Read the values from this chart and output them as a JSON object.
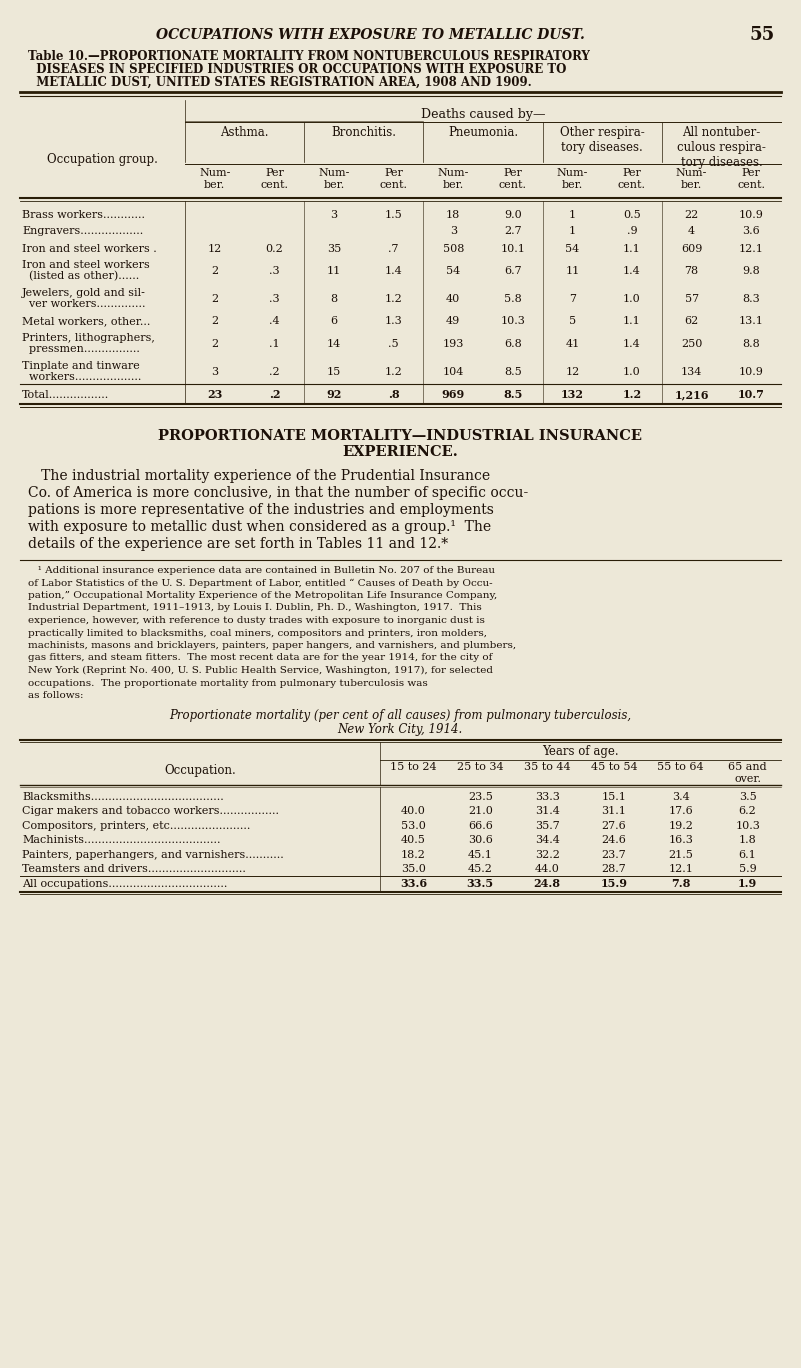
{
  "bg_color": "#ede8d8",
  "page_header": "OCCUPATIONS WITH EXPOSURE TO METALLIC DUST.",
  "page_number": "55",
  "table_title_line1": "Table 10.—PROPORTIONATE MORTALITY FROM NONTUBERCULOUS RESPIRATORY",
  "table_title_line2": "  DISEASES IN SPECIFIED INDUSTRIES OR OCCUPATIONS WITH EXPOSURE TO",
  "table_title_line3": "  METALLIC DUST, UNITED STATES REGISTRATION AREA, 1908 AND 1909.",
  "deaths_caused_by": "Deaths caused by—",
  "col_headers": [
    "Asthma.",
    "Bronchitis.",
    "Pneumonia.",
    "Other respira-\ntory diseases.",
    "All nontuber-\nculous respira-\ntory diseases."
  ],
  "sub_headers": [
    "Num-\nber.",
    "Per\ncent.",
    "Num-\nber.",
    "Per\ncent.",
    "Num-\nber.",
    "Per\ncent.",
    "Num-\nber.",
    "Per\ncent.",
    "Num-\nber.",
    "Per\ncent."
  ],
  "occupation_header": "Occupation group.",
  "rows": [
    {
      "name1": "Brass workers............",
      "name2": "",
      "data": [
        "",
        "",
        "3",
        "1.5",
        "18",
        "9.0",
        "1",
        "0.5",
        "22",
        "10.9"
      ]
    },
    {
      "name1": "Engravers..................",
      "name2": "",
      "data": [
        "",
        "",
        "",
        "",
        "3",
        "2.7",
        "1",
        ".9",
        "4",
        "3.6"
      ]
    },
    {
      "name1": "Iron and steel workers .",
      "name2": "",
      "data": [
        "12",
        "0.2",
        "35",
        ".7",
        "508",
        "10.1",
        "54",
        "1.1",
        "609",
        "12.1"
      ]
    },
    {
      "name1": "Iron and steel workers",
      "name2": "  (listed as other)......",
      "data": [
        "2",
        ".3",
        "11",
        "1.4",
        "54",
        "6.7",
        "11",
        "1.4",
        "78",
        "9.8"
      ]
    },
    {
      "name1": "Jewelers, gold and sil-",
      "name2": "  ver workers..............",
      "data": [
        "2",
        ".3",
        "8",
        "1.2",
        "40",
        "5.8",
        "7",
        "1.0",
        "57",
        "8.3"
      ]
    },
    {
      "name1": "Metal workers, other...",
      "name2": "",
      "data": [
        "2",
        ".4",
        "6",
        "1.3",
        "49",
        "10.3",
        "5",
        "1.1",
        "62",
        "13.1"
      ]
    },
    {
      "name1": "Printers, lithographers,",
      "name2": "  pressmen................",
      "data": [
        "2",
        ".1",
        "14",
        ".5",
        "193",
        "6.8",
        "41",
        "1.4",
        "250",
        "8.8"
      ]
    },
    {
      "name1": "Tinplate and tinware",
      "name2": "  workers...................",
      "data": [
        "3",
        ".2",
        "15",
        "1.2",
        "104",
        "8.5",
        "12",
        "1.0",
        "134",
        "10.9"
      ]
    },
    {
      "name1": "Total.................",
      "name2": "",
      "data": [
        "23",
        ".2",
        "92",
        ".8",
        "969",
        "8.5",
        "132",
        "1.2",
        "1,216",
        "10.7"
      ],
      "is_total": true
    }
  ],
  "section_header1": "PROPORTIONATE MORTALITY—INDUSTRIAL INSURANCE",
  "section_header2": "EXPERIENCE.",
  "body_text": [
    "   The industrial mortality experience of the Prudential Insurance",
    "Co. of America is more conclusive, in that the number of specific occu-",
    "pations is more representative of the industries and employments",
    "with exposure to metallic dust when considered as a group.¹  The",
    "details of the experience are set forth in Tables 11 and 12.*"
  ],
  "footnote_lines": [
    "   ¹ Additional insurance experience data are contained in Bulletin No. 207 of the Bureau",
    "of Labor Statistics of the U. S. Department of Labor, entitled “ Causes of Death by Occu-",
    "pation,” Occupational Mortality Experience of the Metropolitan Life Insurance Company,",
    "Industrial Department, 1911–1913, by Louis I. Dublin, Ph. D., Washington, 1917.  This",
    "experience, however, with reference to dusty trades with exposure to inorganic dust is",
    "practically limited to blacksmiths, coal miners, compositors and printers, iron molders,",
    "machinists, masons and bricklayers, painters, paper hangers, and varnishers, and plumbers,",
    "gas fitters, and steam fitters.  The most recent data are for the year 1914, for the city of",
    "New York (Reprint No. 400, U. S. Public Health Service, Washington, 1917), for selected",
    "occupations.  The proportionate mortality from pulmonary tuberculosis was",
    "as follows:"
  ],
  "tb_title1": "Proportionate mortality (per cent of all causes) from pulmonary tuberculosis,",
  "tb_title2": "New York City, 1914.",
  "tb_col_headers": [
    "15 to 24",
    "25 to 34",
    "35 to 44",
    "45 to 54",
    "55 to 64",
    "65 and\nover."
  ],
  "tb_occupation_header": "Occupation.",
  "tb_years_header": "Years of age.",
  "tb_rows": [
    {
      "name": "Blacksmiths......................................",
      "data": [
        "",
        "23.5",
        "33.3",
        "15.1",
        "3.4",
        "3.5"
      ]
    },
    {
      "name": "Cigar makers and tobacco workers.................",
      "data": [
        "40.0",
        "21.0",
        "31.4",
        "31.1",
        "17.6",
        "6.2"
      ]
    },
    {
      "name": "Compositors, printers, etc.......................",
      "data": [
        "53.0",
        "66.6",
        "35.7",
        "27.6",
        "19.2",
        "10.3"
      ]
    },
    {
      "name": "Machinists.......................................",
      "data": [
        "40.5",
        "30.6",
        "34.4",
        "24.6",
        "16.3",
        "1.8"
      ]
    },
    {
      "name": "Painters, paperhangers, and varnishers...........",
      "data": [
        "18.2",
        "45.1",
        "32.2",
        "23.7",
        "21.5",
        "6.1"
      ]
    },
    {
      "name": "Teamsters and drivers............................",
      "data": [
        "35.0",
        "45.2",
        "44.0",
        "28.7",
        "12.1",
        "5.9"
      ]
    },
    {
      "name": "All occupations..................................",
      "data": [
        "33.6",
        "33.5",
        "24.8",
        "15.9",
        "7.8",
        "1.9"
      ],
      "is_total": true
    }
  ]
}
